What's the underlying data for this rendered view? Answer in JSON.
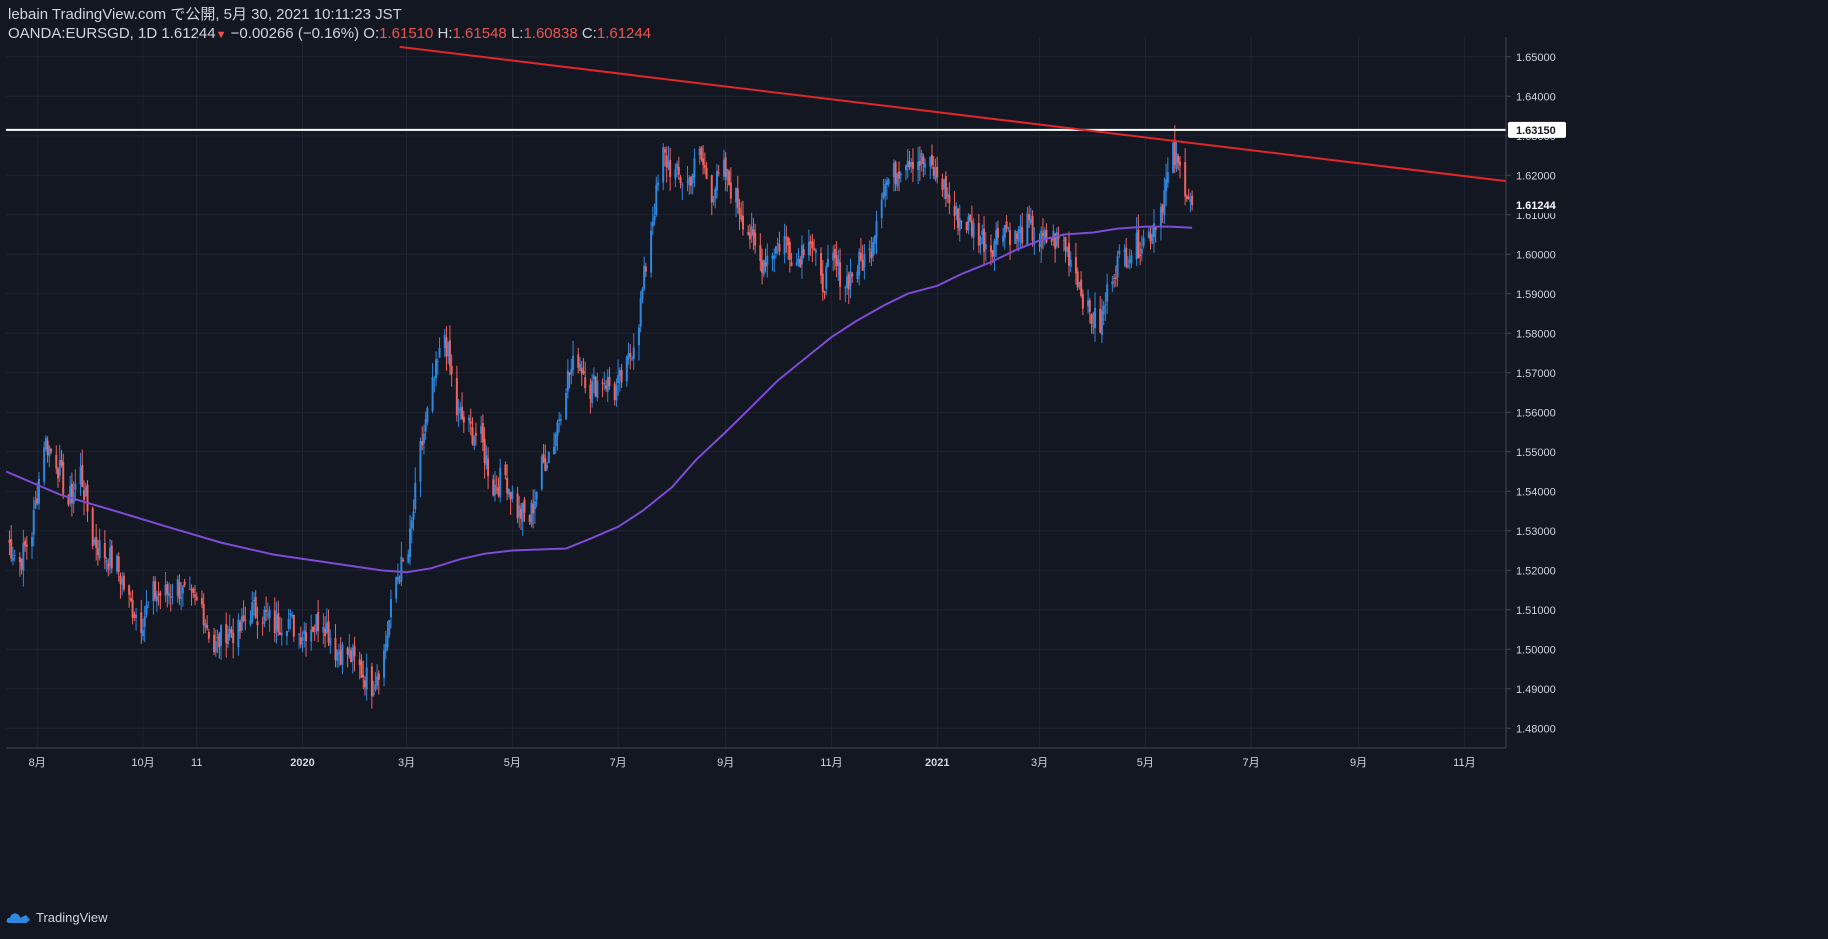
{
  "header": {
    "line1": "lebain TradingView.com で公開, 5月 30, 2021 10:11:23 JST",
    "symbol": "OANDA:EURSGD, 1D",
    "last": "1.61244",
    "change_arrow": "▼",
    "change": "−0.00266 (−0.16%)",
    "o_label": "O:",
    "o_val": "1.61510",
    "h_label": "H:",
    "h_val": "1.61548",
    "l_label": "L:",
    "l_val": "1.60838",
    "c_label": "C:",
    "c_val": "1.61244"
  },
  "footer": {
    "brand": "TradingView"
  },
  "colors": {
    "background": "#131722",
    "up": "#2f88df",
    "down": "#f0625d",
    "ma": "#7e4bd4",
    "trendline": "#e0272b",
    "hline": "#ffffff",
    "grid": "#1e2330",
    "axis_text": "#d1d4dc"
  },
  "chart_data": {
    "type": "candlestick",
    "symbol": "OANDA:EURSGD",
    "interval": "1D",
    "ylim": [
      1.475,
      1.655
    ],
    "y_ticks": [
      "1.48000",
      "1.49000",
      "1.50000",
      "1.51000",
      "1.52000",
      "1.53000",
      "1.54000",
      "1.55000",
      "1.56000",
      "1.57000",
      "1.58000",
      "1.59000",
      "1.60000",
      "1.61000",
      "1.62000",
      "1.63000",
      "1.64000",
      "1.65000"
    ],
    "y_tick_values": [
      1.48,
      1.49,
      1.5,
      1.51,
      1.52,
      1.53,
      1.54,
      1.55,
      1.56,
      1.57,
      1.58,
      1.59,
      1.6,
      1.61,
      1.62,
      1.63,
      1.64,
      1.65
    ],
    "x_labels": [
      "8月",
      "10月",
      "11",
      "2020",
      "3月",
      "5月",
      "7月",
      "9月",
      "11月",
      "2021",
      "3月",
      "5月",
      "7月",
      "9月",
      "11月"
    ],
    "x_label_dates": [
      "2019-08-01",
      "2019-10-01",
      "2019-11-01",
      "2020-01-01",
      "2020-03-01",
      "2020-05-01",
      "2020-07-01",
      "2020-09-01",
      "2020-11-01",
      "2021-01-01",
      "2021-03-01",
      "2021-05-01",
      "2021-07-01",
      "2021-09-01",
      "2021-11-01"
    ],
    "x_start": "2019-07-14",
    "x_end": "2021-11-25",
    "price_path": [
      [
        "2019-07-14",
        1.528
      ],
      [
        "2019-07-22",
        1.522
      ],
      [
        "2019-07-29",
        1.53
      ],
      [
        "2019-08-05",
        1.553
      ],
      [
        "2019-08-12",
        1.548
      ],
      [
        "2019-08-19",
        1.537
      ],
      [
        "2019-08-26",
        1.545
      ],
      [
        "2019-09-02",
        1.528
      ],
      [
        "2019-09-09",
        1.524
      ],
      [
        "2019-09-16",
        1.521
      ],
      [
        "2019-09-23",
        1.512
      ],
      [
        "2019-09-30",
        1.507
      ],
      [
        "2019-10-07",
        1.514
      ],
      [
        "2019-10-14",
        1.514
      ],
      [
        "2019-10-21",
        1.516
      ],
      [
        "2019-10-28",
        1.512
      ],
      [
        "2019-11-04",
        1.511
      ],
      [
        "2019-11-11",
        1.5
      ],
      [
        "2019-11-18",
        1.505
      ],
      [
        "2019-11-25",
        1.504
      ],
      [
        "2019-12-02",
        1.51
      ],
      [
        "2019-12-09",
        1.509
      ],
      [
        "2019-12-16",
        1.506
      ],
      [
        "2019-12-23",
        1.508
      ],
      [
        "2019-12-30",
        1.504
      ],
      [
        "2020-01-06",
        1.506
      ],
      [
        "2020-01-13",
        1.508
      ],
      [
        "2020-01-20",
        1.5
      ],
      [
        "2020-01-27",
        1.499
      ],
      [
        "2020-02-03",
        1.495
      ],
      [
        "2020-02-10",
        1.491
      ],
      [
        "2020-02-17",
        1.499
      ],
      [
        "2020-02-24",
        1.518
      ],
      [
        "2020-03-02",
        1.524
      ],
      [
        "2020-03-09",
        1.55
      ],
      [
        "2020-03-16",
        1.566
      ],
      [
        "2020-03-23",
        1.58
      ],
      [
        "2020-03-30",
        1.56
      ],
      [
        "2020-04-06",
        1.556
      ],
      [
        "2020-04-13",
        1.553
      ],
      [
        "2020-04-20",
        1.541
      ],
      [
        "2020-04-27",
        1.544
      ],
      [
        "2020-05-04",
        1.535
      ],
      [
        "2020-05-11",
        1.533
      ],
      [
        "2020-05-18",
        1.546
      ],
      [
        "2020-05-25",
        1.553
      ],
      [
        "2020-06-01",
        1.568
      ],
      [
        "2020-06-08",
        1.574
      ],
      [
        "2020-06-15",
        1.566
      ],
      [
        "2020-06-22",
        1.569
      ],
      [
        "2020-06-29",
        1.565
      ],
      [
        "2020-07-06",
        1.571
      ],
      [
        "2020-07-13",
        1.584
      ],
      [
        "2020-07-20",
        1.607
      ],
      [
        "2020-07-27",
        1.625
      ],
      [
        "2020-08-03",
        1.62
      ],
      [
        "2020-08-10",
        1.618
      ],
      [
        "2020-08-17",
        1.625
      ],
      [
        "2020-08-24",
        1.616
      ],
      [
        "2020-08-31",
        1.621
      ],
      [
        "2020-09-07",
        1.614
      ],
      [
        "2020-09-14",
        1.606
      ],
      [
        "2020-09-21",
        1.598
      ],
      [
        "2020-09-28",
        1.601
      ],
      [
        "2020-10-05",
        1.604
      ],
      [
        "2020-10-12",
        1.598
      ],
      [
        "2020-10-19",
        1.606
      ],
      [
        "2020-10-26",
        1.592
      ],
      [
        "2020-11-02",
        1.598
      ],
      [
        "2020-11-09",
        1.593
      ],
      [
        "2020-11-16",
        1.597
      ],
      [
        "2020-11-23",
        1.6
      ],
      [
        "2020-11-30",
        1.617
      ],
      [
        "2020-12-07",
        1.62
      ],
      [
        "2020-12-14",
        1.625
      ],
      [
        "2020-12-21",
        1.624
      ],
      [
        "2020-12-28",
        1.622
      ],
      [
        "2021-01-04",
        1.618
      ],
      [
        "2021-01-11",
        1.61
      ],
      [
        "2021-01-18",
        1.608
      ],
      [
        "2021-01-25",
        1.605
      ],
      [
        "2021-02-01",
        1.602
      ],
      [
        "2021-02-08",
        1.608
      ],
      [
        "2021-02-15",
        1.604
      ],
      [
        "2021-02-22",
        1.607
      ],
      [
        "2021-03-01",
        1.603
      ],
      [
        "2021-03-08",
        1.604
      ],
      [
        "2021-03-15",
        1.603
      ],
      [
        "2021-03-22",
        1.596
      ],
      [
        "2021-03-29",
        1.585
      ],
      [
        "2021-04-05",
        1.582
      ],
      [
        "2021-04-12",
        1.596
      ],
      [
        "2021-04-19",
        1.6
      ],
      [
        "2021-04-26",
        1.602
      ],
      [
        "2021-05-03",
        1.605
      ],
      [
        "2021-05-10",
        1.612
      ],
      [
        "2021-05-17",
        1.625
      ],
      [
        "2021-05-24",
        1.618
      ],
      [
        "2021-05-28",
        1.61244
      ]
    ],
    "moving_average": {
      "path": [
        [
          "2019-07-14",
          1.545
        ],
        [
          "2019-08-15",
          1.539
        ],
        [
          "2019-09-15",
          1.535
        ],
        [
          "2019-10-15",
          1.531
        ],
        [
          "2019-11-15",
          1.527
        ],
        [
          "2019-12-15",
          1.524
        ],
        [
          "2020-01-15",
          1.522
        ],
        [
          "2020-02-15",
          1.52
        ],
        [
          "2020-03-01",
          1.5195
        ],
        [
          "2020-03-15",
          1.5205
        ],
        [
          "2020-04-01",
          1.5228
        ],
        [
          "2020-04-15",
          1.5242
        ],
        [
          "2020-05-01",
          1.525
        ],
        [
          "2020-06-01",
          1.5255
        ],
        [
          "2020-06-15",
          1.528
        ],
        [
          "2020-07-01",
          1.531
        ],
        [
          "2020-07-15",
          1.535
        ],
        [
          "2020-08-01",
          1.541
        ],
        [
          "2020-08-15",
          1.548
        ],
        [
          "2020-09-01",
          1.555
        ],
        [
          "2020-09-15",
          1.561
        ],
        [
          "2020-10-01",
          1.568
        ],
        [
          "2020-10-15",
          1.573
        ],
        [
          "2020-11-01",
          1.579
        ],
        [
          "2020-11-15",
          1.583
        ],
        [
          "2020-12-01",
          1.587
        ],
        [
          "2020-12-15",
          1.59
        ],
        [
          "2021-01-01",
          1.592
        ],
        [
          "2021-01-15",
          1.595
        ],
        [
          "2021-02-01",
          1.598
        ],
        [
          "2021-02-15",
          1.601
        ],
        [
          "2021-03-01",
          1.6035
        ],
        [
          "2021-03-15",
          1.605
        ],
        [
          "2021-04-01",
          1.6055
        ],
        [
          "2021-04-15",
          1.6065
        ],
        [
          "2021-05-01",
          1.607
        ],
        [
          "2021-05-15",
          1.607
        ],
        [
          "2021-05-28",
          1.6067
        ]
      ]
    },
    "trendline": {
      "from": [
        "2020-02-26",
        1.6525
      ],
      "to": [
        "2021-11-25",
        1.6185
      ]
    },
    "horizontal_line": {
      "value": 1.6315,
      "label": "1.63150"
    },
    "last_price_label": "1.61244",
    "last_price_value": 1.61244,
    "grid": true
  }
}
